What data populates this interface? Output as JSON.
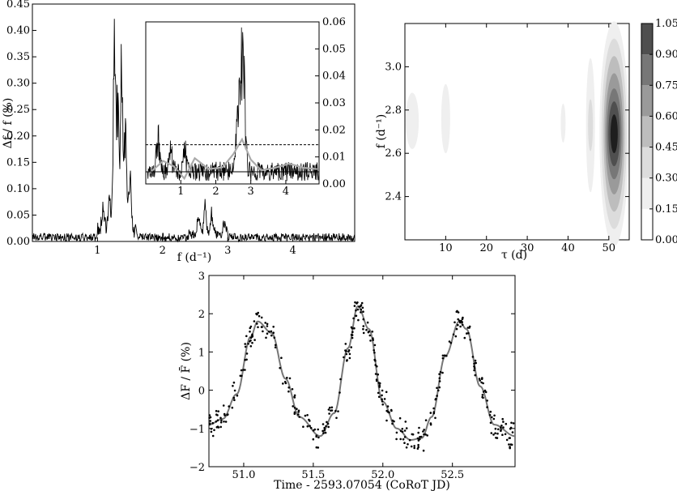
{
  "chart_data": [
    {
      "type": "line",
      "id": "periodogram",
      "xlabel": "f (d⁻¹)",
      "ylabel": "Δf / f (%)",
      "xticks": [
        "1",
        "2",
        "3",
        "4"
      ],
      "yticks": [
        "0.00",
        "0.05",
        "0.10",
        "0.15",
        "0.20",
        "0.25",
        "0.30",
        "0.35",
        "0.40",
        "0.45"
      ],
      "xlim": [
        0,
        4.95
      ],
      "ylim": [
        0,
        0.45
      ],
      "peaks": [
        {
          "f": 1.26,
          "amp": 0.425
        },
        {
          "f": 1.31,
          "amp": 0.29
        },
        {
          "f": 1.37,
          "amp": 0.4
        },
        {
          "f": 1.43,
          "amp": 0.23
        },
        {
          "f": 1.5,
          "amp": 0.12
        },
        {
          "f": 1.18,
          "amp": 0.08
        },
        {
          "f": 1.09,
          "amp": 0.05
        },
        {
          "f": 2.55,
          "amp": 0.045
        },
        {
          "f": 2.65,
          "amp": 0.06
        },
        {
          "f": 2.75,
          "amp": 0.05
        },
        {
          "f": 2.95,
          "amp": 0.03
        }
      ],
      "noise_level": 0.012
    },
    {
      "type": "line",
      "id": "periodogram-inset",
      "xticks": [
        "1",
        "2",
        "3",
        "4"
      ],
      "yticks": [
        "0.00",
        "0.01",
        "0.02",
        "0.03",
        "0.04",
        "0.05",
        "0.06"
      ],
      "xlim": [
        0,
        4.95
      ],
      "ylim": [
        0,
        0.06
      ],
      "dashed_level": 0.0145,
      "solid_level": 0.0045,
      "peaks": [
        {
          "f": 2.72,
          "amp": 0.042
        },
        {
          "f": 2.8,
          "amp": 0.035
        },
        {
          "f": 2.6,
          "amp": 0.02
        },
        {
          "f": 0.35,
          "amp": 0.013
        },
        {
          "f": 0.7,
          "amp": 0.011
        },
        {
          "f": 1.1,
          "amp": 0.01
        }
      ],
      "smooth_curve": {
        "f": [
          0.1,
          0.5,
          0.8,
          1.1,
          1.4,
          1.8,
          2.2,
          2.5,
          2.75,
          3.0,
          3.3,
          3.7,
          4.1,
          4.5,
          4.9
        ],
        "amp": [
          0.004,
          0.0085,
          0.0065,
          0.002,
          0.0095,
          0.0055,
          0.0062,
          0.011,
          0.0165,
          0.009,
          0.005,
          0.006,
          0.0075,
          0.006,
          0.0055
        ]
      },
      "noise_level": 0.0055
    },
    {
      "type": "heatmap",
      "id": "wavelet-map",
      "xlabel": "τ (d)",
      "ylabel": "f (d⁻¹)",
      "xticks": [
        "10",
        "20",
        "30",
        "40",
        "50"
      ],
      "yticks": [
        "2.4",
        "2.6",
        "2.8",
        "3.0"
      ],
      "xlim": [
        0,
        55
      ],
      "ylim": [
        2.2,
        3.2
      ],
      "colorbar_ticks": [
        "0.00",
        "0.15",
        "0.30",
        "0.45",
        "0.60",
        "0.75",
        "0.90",
        "1.05"
      ],
      "levels": [
        0.0,
        0.15,
        0.3,
        0.45,
        0.6,
        0.75,
        0.9,
        1.05
      ],
      "blobs": [
        {
          "tau": 1.8,
          "f": 2.75,
          "peak": 0.22
        },
        {
          "tau": 10.0,
          "f": 2.76,
          "peak": 0.22
        },
        {
          "tau": 38.8,
          "f": 2.74,
          "peak": 0.18
        },
        {
          "tau": 45.5,
          "f": 2.73,
          "peak": 0.33
        },
        {
          "tau": 51.3,
          "f": 2.69,
          "peak": 1.02
        }
      ]
    },
    {
      "type": "scatter",
      "id": "light-curve",
      "xlabel": "Time - 2593.07054 (CoRoT JD)",
      "ylabel": "ΔF / F̄ (%)",
      "xticks": [
        "51.0",
        "51.5",
        "52.0",
        "52.5"
      ],
      "yticks": [
        "−2",
        "−1",
        "0",
        "1",
        "2",
        "3"
      ],
      "xlim": [
        50.75,
        52.95
      ],
      "ylim": [
        -2,
        3
      ],
      "fit": {
        "x": [
          50.75,
          50.85,
          50.95,
          51.05,
          51.1,
          51.2,
          51.3,
          51.4,
          51.55,
          51.65,
          51.75,
          51.82,
          51.9,
          52.0,
          52.1,
          52.2,
          52.28,
          52.35,
          52.45,
          52.55,
          52.6,
          52.7,
          52.8,
          52.95
        ],
        "y": [
          -0.9,
          -0.75,
          -0.1,
          1.4,
          1.8,
          1.5,
          0.3,
          -0.7,
          -1.2,
          -0.6,
          1.1,
          2.2,
          1.6,
          -0.3,
          -1.0,
          -1.3,
          -1.25,
          -0.7,
          0.9,
          1.8,
          1.6,
          0.1,
          -0.9,
          -1.2
        ]
      }
    }
  ]
}
